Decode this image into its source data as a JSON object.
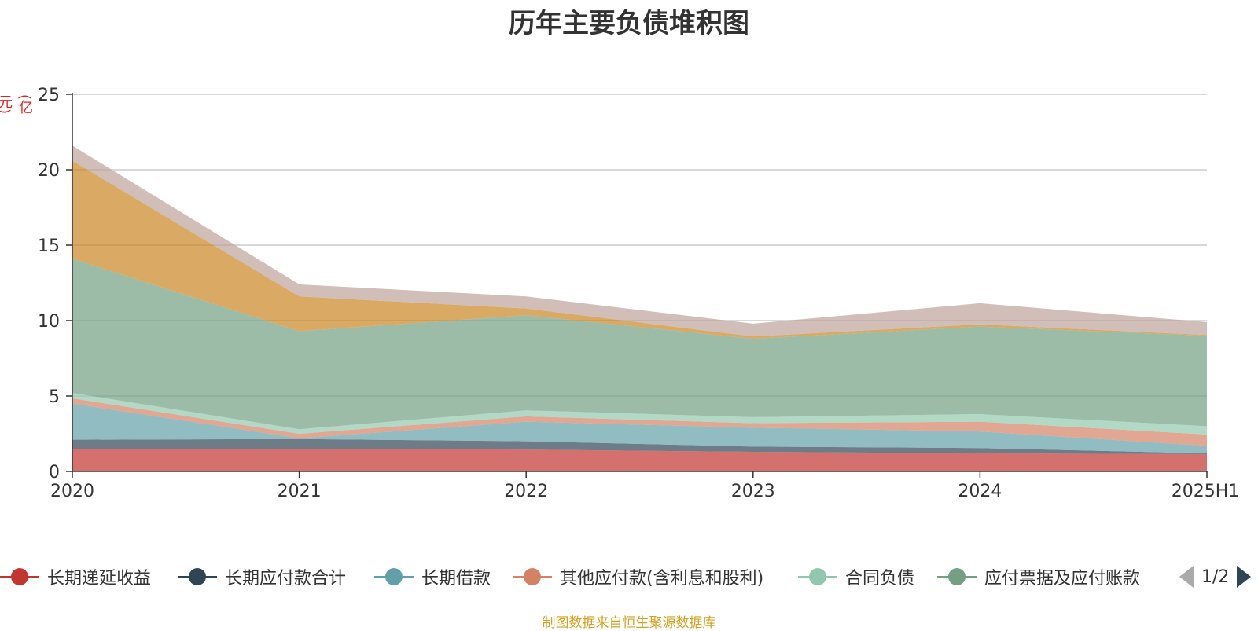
{
  "chart_data": {
    "type": "area",
    "stacked": true,
    "title": "历年主要负债堆积图",
    "ylabel": "(亿元)",
    "categories": [
      "2020",
      "2021",
      "2022",
      "2023",
      "2024",
      "2025H1"
    ],
    "ylim": [
      0,
      25
    ],
    "yticks": [
      "0",
      "5",
      "10",
      "15",
      "20",
      "25"
    ],
    "grid": true,
    "series": [
      {
        "name": "长期递延收益",
        "color": "#c23531",
        "values": [
          1.5,
          1.5,
          1.45,
          1.3,
          1.2,
          1.15
        ]
      },
      {
        "name": "长期应付款合计",
        "color": "#2f4554",
        "values": [
          0.6,
          0.65,
          0.55,
          0.35,
          0.35,
          0.05
        ]
      },
      {
        "name": "长期借款",
        "color": "#61a0a8",
        "values": [
          2.4,
          0.05,
          1.3,
          1.25,
          1.1,
          0.5
        ]
      },
      {
        "name": "其他应付款(含利息和股利)",
        "color": "#d48265",
        "values": [
          0.35,
          0.3,
          0.35,
          0.3,
          0.65,
          0.75
        ]
      },
      {
        "name": "合同负债",
        "color": "#91c7ae",
        "values": [
          0.35,
          0.3,
          0.4,
          0.4,
          0.5,
          0.55
        ]
      },
      {
        "name": "应付票据及应付账款",
        "color": "#749f83",
        "values": [
          8.9,
          6.5,
          6.3,
          5.2,
          5.8,
          6.0
        ]
      },
      {
        "name": "",
        "color": "#ca8622",
        "values": [
          6.5,
          2.3,
          0.45,
          0.15,
          0.15,
          0.05
        ]
      },
      {
        "name": "",
        "color": "#bda29a",
        "values": [
          1.0,
          0.8,
          0.8,
          0.85,
          1.4,
          0.85
        ]
      }
    ],
    "legend_placement": "bottom"
  },
  "legend": {
    "page": "1/2"
  },
  "footer": {
    "source": "制图数据来自恒生聚源数据库"
  }
}
